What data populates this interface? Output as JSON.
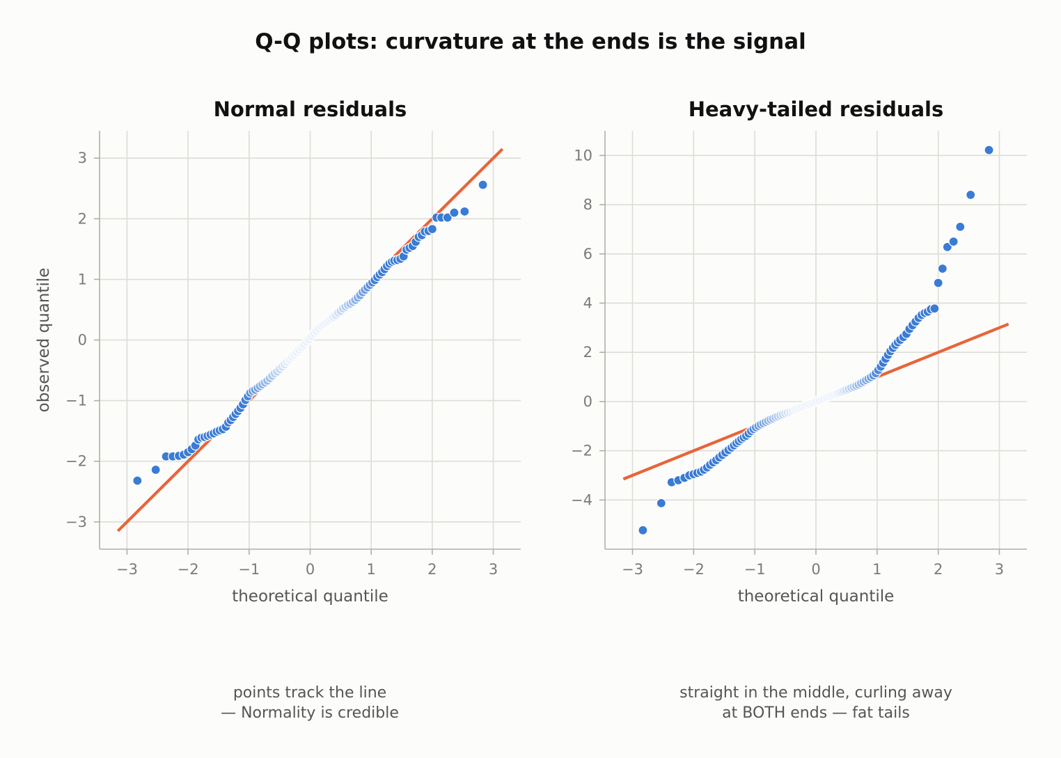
{
  "figure": {
    "title": "Q-Q plots: curvature at the ends is the signal",
    "colors": {
      "background": "#fcfcfa",
      "points": "#3a7bd5",
      "line": "#e8643a",
      "grid": "#dedcd6",
      "axis": "#b0aea8"
    }
  },
  "captions": [
    {
      "line1": "points track the line",
      "line2": "— Normality is credible"
    },
    {
      "line1": "straight in the middle, curling away",
      "line2": "at BOTH ends — fat tails"
    }
  ],
  "chart_data": [
    {
      "type": "scatter",
      "title": "Normal residuals",
      "xlabel": "theoretical quantile",
      "ylabel": "observed quantile",
      "xlim": [
        -3.45,
        3.45
      ],
      "ylim": [
        -3.45,
        3.45
      ],
      "xticks": [
        -3,
        -2,
        -1,
        0,
        1,
        2,
        3
      ],
      "yticks": [
        -3,
        -2,
        -1,
        0,
        1,
        2,
        3
      ],
      "tick_labels_x": [
        "−3",
        "−2",
        "−1",
        "0",
        "1",
        "2",
        "3"
      ],
      "tick_labels_y": [
        "−3",
        "−2",
        "−1",
        "0",
        "1",
        "2",
        "3"
      ],
      "grid": true,
      "reference_line": {
        "x": [
          -3.15,
          3.15
        ],
        "y": [
          -3.15,
          3.15
        ]
      },
      "series": [
        {
          "points": [
            [
              -2.83,
              -2.32
            ],
            [
              -2.53,
              -2.14
            ],
            [
              -2.36,
              -1.92
            ],
            [
              -2.25,
              -1.92
            ],
            [
              -2.15,
              -1.91
            ],
            [
              -2.07,
              -1.89
            ],
            [
              -2.0,
              -1.85
            ],
            [
              -1.94,
              -1.8
            ],
            [
              -1.88,
              -1.74
            ],
            [
              -1.83,
              -1.64
            ],
            [
              -1.78,
              -1.61
            ],
            [
              -1.73,
              -1.6
            ],
            [
              -1.68,
              -1.58
            ],
            [
              -1.63,
              -1.56
            ],
            [
              -1.58,
              -1.54
            ],
            [
              -1.53,
              -1.51
            ],
            [
              -1.48,
              -1.49
            ],
            [
              -1.43,
              -1.47
            ],
            [
              -1.38,
              -1.43
            ],
            [
              -1.34,
              -1.36
            ],
            [
              -1.3,
              -1.32
            ],
            [
              -1.26,
              -1.27
            ],
            [
              -1.22,
              -1.22
            ],
            [
              -1.18,
              -1.17
            ],
            [
              -1.14,
              -1.12
            ],
            [
              -1.1,
              -1.06
            ],
            [
              -1.06,
              -0.99
            ],
            [
              -1.02,
              -0.93
            ],
            [
              -0.98,
              -0.87
            ],
            [
              -0.94,
              -0.84
            ],
            [
              -0.9,
              -0.82
            ],
            [
              -0.86,
              -0.79
            ],
            [
              -0.82,
              -0.76
            ],
            [
              -0.78,
              -0.73
            ],
            [
              -0.74,
              -0.7
            ],
            [
              -0.7,
              -0.67
            ],
            [
              -0.66,
              -0.63
            ],
            [
              -0.62,
              -0.59
            ],
            [
              -0.58,
              -0.55
            ],
            [
              -0.54,
              -0.52
            ],
            [
              -0.5,
              -0.48
            ],
            [
              -0.46,
              -0.44
            ],
            [
              -0.42,
              -0.4
            ],
            [
              -0.38,
              -0.36
            ],
            [
              -0.34,
              -0.32
            ],
            [
              -0.3,
              -0.28
            ],
            [
              -0.26,
              -0.24
            ],
            [
              -0.22,
              -0.2
            ],
            [
              -0.18,
              -0.16
            ],
            [
              -0.14,
              -0.12
            ],
            [
              -0.1,
              -0.08
            ],
            [
              -0.06,
              -0.03
            ],
            [
              -0.02,
              0.01
            ],
            [
              0.02,
              0.06
            ],
            [
              0.06,
              0.11
            ],
            [
              0.1,
              0.15
            ],
            [
              0.14,
              0.19
            ],
            [
              0.18,
              0.23
            ],
            [
              0.22,
              0.26
            ],
            [
              0.26,
              0.29
            ],
            [
              0.3,
              0.32
            ],
            [
              0.34,
              0.35
            ],
            [
              0.38,
              0.38
            ],
            [
              0.42,
              0.41
            ],
            [
              0.46,
              0.45
            ],
            [
              0.5,
              0.48
            ],
            [
              0.54,
              0.52
            ],
            [
              0.58,
              0.55
            ],
            [
              0.62,
              0.58
            ],
            [
              0.66,
              0.6
            ],
            [
              0.7,
              0.63
            ],
            [
              0.74,
              0.66
            ],
            [
              0.78,
              0.7
            ],
            [
              0.82,
              0.74
            ],
            [
              0.86,
              0.79
            ],
            [
              0.9,
              0.83
            ],
            [
              0.94,
              0.87
            ],
            [
              0.98,
              0.91
            ],
            [
              1.02,
              0.95
            ],
            [
              1.06,
              0.99
            ],
            [
              1.1,
              1.04
            ],
            [
              1.14,
              1.08
            ],
            [
              1.18,
              1.12
            ],
            [
              1.22,
              1.17
            ],
            [
              1.26,
              1.22
            ],
            [
              1.3,
              1.26
            ],
            [
              1.34,
              1.29
            ],
            [
              1.38,
              1.31
            ],
            [
              1.43,
              1.32
            ],
            [
              1.48,
              1.34
            ],
            [
              1.53,
              1.38
            ],
            [
              1.58,
              1.49
            ],
            [
              1.63,
              1.52
            ],
            [
              1.68,
              1.55
            ],
            [
              1.73,
              1.62
            ],
            [
              1.78,
              1.7
            ],
            [
              1.83,
              1.73
            ],
            [
              1.88,
              1.79
            ],
            [
              1.94,
              1.8
            ],
            [
              2.0,
              1.83
            ],
            [
              2.07,
              2.02
            ],
            [
              2.15,
              2.02
            ],
            [
              2.25,
              2.02
            ],
            [
              2.36,
              2.1
            ],
            [
              2.53,
              2.12
            ],
            [
              2.83,
              2.56
            ]
          ]
        }
      ]
    },
    {
      "type": "scatter",
      "title": "Heavy-tailed residuals",
      "xlabel": "theoretical quantile",
      "ylabel": "",
      "xlim": [
        -3.45,
        3.45
      ],
      "ylim": [
        -6.0,
        11.0
      ],
      "xticks": [
        -3,
        -2,
        -1,
        0,
        1,
        2,
        3
      ],
      "yticks": [
        -4,
        -2,
        0,
        2,
        4,
        6,
        8,
        10
      ],
      "tick_labels_x": [
        "−3",
        "−2",
        "−1",
        "0",
        "1",
        "2",
        "3"
      ],
      "tick_labels_y": [
        "−4",
        "−2",
        "0",
        "2",
        "4",
        "6",
        "8",
        "10"
      ],
      "grid": true,
      "reference_line": {
        "x": [
          -3.15,
          3.15
        ],
        "y": [
          -3.15,
          3.15
        ]
      },
      "series": [
        {
          "points": [
            [
              -2.83,
              -5.23
            ],
            [
              -2.53,
              -4.13
            ],
            [
              -2.36,
              -3.28
            ],
            [
              -2.25,
              -3.2
            ],
            [
              -2.15,
              -3.1
            ],
            [
              -2.07,
              -3.0
            ],
            [
              -2.0,
              -2.95
            ],
            [
              -1.94,
              -2.9
            ],
            [
              -1.88,
              -2.85
            ],
            [
              -1.83,
              -2.77
            ],
            [
              -1.78,
              -2.68
            ],
            [
              -1.73,
              -2.57
            ],
            [
              -1.68,
              -2.47
            ],
            [
              -1.63,
              -2.38
            ],
            [
              -1.58,
              -2.27
            ],
            [
              -1.53,
              -2.17
            ],
            [
              -1.48,
              -2.07
            ],
            [
              -1.43,
              -1.97
            ],
            [
              -1.38,
              -1.87
            ],
            [
              -1.34,
              -1.78
            ],
            [
              -1.3,
              -1.69
            ],
            [
              -1.26,
              -1.61
            ],
            [
              -1.22,
              -1.53
            ],
            [
              -1.18,
              -1.46
            ],
            [
              -1.14,
              -1.39
            ],
            [
              -1.1,
              -1.3
            ],
            [
              -1.06,
              -1.2
            ],
            [
              -1.02,
              -1.12
            ],
            [
              -0.98,
              -1.05
            ],
            [
              -0.94,
              -0.99
            ],
            [
              -0.9,
              -0.93
            ],
            [
              -0.86,
              -0.88
            ],
            [
              -0.82,
              -0.83
            ],
            [
              -0.78,
              -0.78
            ],
            [
              -0.74,
              -0.73
            ],
            [
              -0.7,
              -0.69
            ],
            [
              -0.66,
              -0.64
            ],
            [
              -0.62,
              -0.6
            ],
            [
              -0.58,
              -0.56
            ],
            [
              -0.54,
              -0.52
            ],
            [
              -0.5,
              -0.48
            ],
            [
              -0.46,
              -0.44
            ],
            [
              -0.42,
              -0.4
            ],
            [
              -0.38,
              -0.36
            ],
            [
              -0.34,
              -0.32
            ],
            [
              -0.3,
              -0.28
            ],
            [
              -0.26,
              -0.25
            ],
            [
              -0.22,
              -0.21
            ],
            [
              -0.18,
              -0.17
            ],
            [
              -0.14,
              -0.13
            ],
            [
              -0.1,
              -0.1
            ],
            [
              -0.06,
              -0.06
            ],
            [
              -0.02,
              -0.02
            ],
            [
              0.02,
              0.02
            ],
            [
              0.06,
              0.06
            ],
            [
              0.1,
              0.1
            ],
            [
              0.14,
              0.13
            ],
            [
              0.18,
              0.17
            ],
            [
              0.22,
              0.21
            ],
            [
              0.26,
              0.25
            ],
            [
              0.3,
              0.28
            ],
            [
              0.34,
              0.32
            ],
            [
              0.38,
              0.36
            ],
            [
              0.42,
              0.4
            ],
            [
              0.46,
              0.44
            ],
            [
              0.5,
              0.48
            ],
            [
              0.54,
              0.52
            ],
            [
              0.58,
              0.56
            ],
            [
              0.62,
              0.6
            ],
            [
              0.66,
              0.64
            ],
            [
              0.7,
              0.69
            ],
            [
              0.74,
              0.75
            ],
            [
              0.78,
              0.81
            ],
            [
              0.82,
              0.87
            ],
            [
              0.86,
              0.93
            ],
            [
              0.9,
              0.99
            ],
            [
              0.94,
              1.06
            ],
            [
              0.98,
              1.15
            ],
            [
              1.02,
              1.28
            ],
            [
              1.06,
              1.42
            ],
            [
              1.1,
              1.58
            ],
            [
              1.14,
              1.74
            ],
            [
              1.18,
              1.9
            ],
            [
              1.22,
              2.05
            ],
            [
              1.26,
              2.18
            ],
            [
              1.3,
              2.3
            ],
            [
              1.34,
              2.41
            ],
            [
              1.38,
              2.51
            ],
            [
              1.43,
              2.62
            ],
            [
              1.48,
              2.75
            ],
            [
              1.53,
              2.95
            ],
            [
              1.58,
              3.1
            ],
            [
              1.63,
              3.25
            ],
            [
              1.68,
              3.4
            ],
            [
              1.73,
              3.52
            ],
            [
              1.78,
              3.6
            ],
            [
              1.83,
              3.65
            ],
            [
              1.88,
              3.75
            ],
            [
              1.94,
              3.78
            ],
            [
              2.0,
              4.82
            ],
            [
              2.07,
              5.4
            ],
            [
              2.15,
              6.28
            ],
            [
              2.25,
              6.5
            ],
            [
              2.36,
              7.1
            ],
            [
              2.53,
              8.4
            ],
            [
              2.83,
              10.22
            ]
          ]
        }
      ]
    }
  ]
}
